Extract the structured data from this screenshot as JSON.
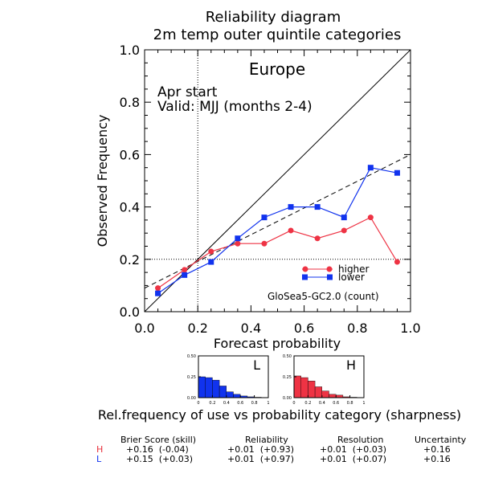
{
  "title": {
    "line1": "Reliability diagram",
    "line2": "2m temp outer quintile categories"
  },
  "annotations": {
    "region": "Europe",
    "start": "Apr start",
    "valid": "Valid: MJJ (months 2-4)",
    "model": "GloSea5-GC2.0 (count)"
  },
  "colors": {
    "higher": "#ee3344",
    "lower": "#1133ee",
    "black": "#000000"
  },
  "chart_data": [
    {
      "type": "line",
      "xlabel": "Forecast probability",
      "ylabel": "Observed Frequency",
      "xlim": [
        0.0,
        1.0
      ],
      "ylim": [
        0.0,
        1.0
      ],
      "xticks": [
        "0.0",
        "0.2",
        "0.4",
        "0.6",
        "0.8",
        "1.0"
      ],
      "yticks": [
        "0.0",
        "0.2",
        "0.4",
        "0.6",
        "0.8",
        "1.0"
      ],
      "reference_lines": {
        "climatology": 0.2,
        "diagonal": [
          [
            0,
            0
          ],
          [
            1,
            1
          ]
        ],
        "dashed": [
          [
            0,
            0.09
          ],
          [
            1,
            0.6
          ]
        ]
      },
      "legend_position": "lower-right",
      "series": [
        {
          "name": "higher",
          "color": "#ee3344",
          "x": [
            0.05,
            0.15,
            0.25,
            0.35,
            0.45,
            0.55,
            0.65,
            0.75,
            0.85,
            0.95
          ],
          "y": [
            0.09,
            0.16,
            0.23,
            0.26,
            0.26,
            0.31,
            0.28,
            0.31,
            0.36,
            0.19
          ]
        },
        {
          "name": "lower",
          "color": "#1133ee",
          "x": [
            0.05,
            0.15,
            0.25,
            0.35,
            0.45,
            0.55,
            0.65,
            0.75,
            0.85,
            0.95
          ],
          "y": [
            0.07,
            0.14,
            0.19,
            0.28,
            0.36,
            0.4,
            0.4,
            0.36,
            0.55,
            0.53
          ]
        }
      ]
    },
    {
      "type": "bar",
      "label": "L",
      "color": "#1133ee",
      "categories": [
        "0.05",
        "0.15",
        "0.25",
        "0.35",
        "0.45",
        "0.55",
        "0.65",
        "0.75",
        "0.85",
        "0.95"
      ],
      "values": [
        0.25,
        0.24,
        0.21,
        0.14,
        0.07,
        0.04,
        0.02,
        0.01,
        0.005,
        0.002
      ],
      "xlim": [
        0,
        1
      ],
      "ylim": [
        0,
        0.5
      ],
      "xticks": [
        "0",
        "0.2",
        "0.4",
        "0.6",
        "0.8",
        "1"
      ],
      "yticks": [
        "0.00",
        "0.25",
        "0.50"
      ]
    },
    {
      "type": "bar",
      "label": "H",
      "color": "#ee3344",
      "categories": [
        "0.05",
        "0.15",
        "0.25",
        "0.35",
        "0.45",
        "0.55",
        "0.65",
        "0.75",
        "0.85",
        "0.95"
      ],
      "values": [
        0.26,
        0.24,
        0.2,
        0.13,
        0.08,
        0.04,
        0.03,
        0.01,
        0.005,
        0.002
      ],
      "xlim": [
        0,
        1
      ],
      "ylim": [
        0,
        0.5
      ],
      "xticks": [
        "0",
        "0.2",
        "0.4",
        "0.6",
        "0.8",
        "1"
      ],
      "yticks": [
        "0.00",
        "0.25",
        "0.50"
      ]
    }
  ],
  "sharpness_caption": "Rel.frequency of use vs probability category (sharpness)",
  "scores": {
    "headers": [
      "Brier Score (skill)",
      "Reliability",
      "Resolution",
      "Uncertainty"
    ],
    "rows": [
      {
        "label": "H",
        "brier": "+0.16  (-0.04)",
        "reliability": "+0.01  (+0.93)",
        "resolution": "+0.01  (+0.03)",
        "uncertainty": "+0.16"
      },
      {
        "label": "L",
        "brier": "+0.15  (+0.03)",
        "reliability": "+0.01  (+0.97)",
        "resolution": "+0.01  (+0.07)",
        "uncertainty": "+0.16"
      }
    ]
  }
}
